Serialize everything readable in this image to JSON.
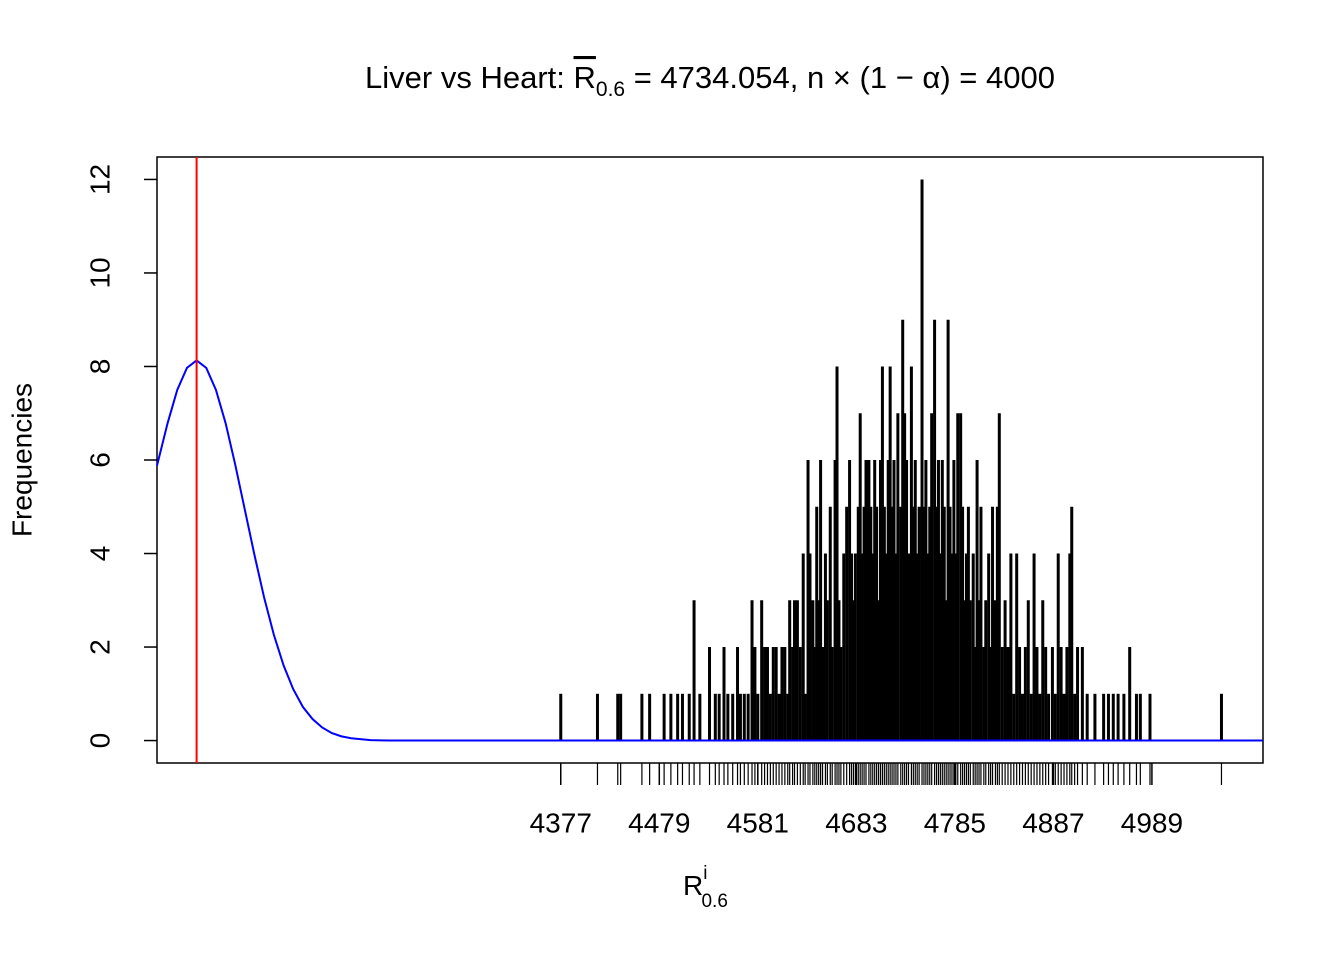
{
  "chart_data": {
    "type": "frequency",
    "title_parts": [
      "Liver vs Heart: ",
      "R",
      "0.6",
      " = 4734.054, n × (1 − α) = 4000"
    ],
    "x_label_parts": [
      "R",
      "i",
      "0.6"
    ],
    "y_label": "Frequencies",
    "xlim": [
      3959,
      5104
    ],
    "ylim": [
      -0.48,
      12.48
    ],
    "xticks": [
      4377,
      4479,
      4581,
      4683,
      4785,
      4887,
      4989
    ],
    "yticks": [
      0,
      2,
      4,
      6,
      8,
      10,
      12
    ],
    "vline": 4000,
    "vline_color": "#ff0000",
    "bars": {
      "color": "#000000",
      "x": [
        4377,
        4415,
        4436,
        4439,
        4461,
        4469,
        4484,
        4491,
        4498,
        4503,
        4510,
        4515,
        4521,
        4531,
        4537,
        4541,
        4546,
        4550,
        4555,
        4560,
        4563,
        4567,
        4571,
        4575,
        4578,
        4581,
        4585,
        4588,
        4591,
        4594,
        4597,
        4600,
        4603,
        4606,
        4609,
        4612,
        4614,
        4617,
        4619,
        4622,
        4625,
        4628,
        4630,
        4633,
        4635,
        4638,
        4640,
        4642,
        4644,
        4646,
        4648,
        4651,
        4653,
        4656,
        4658,
        4661,
        4663,
        4665,
        4667,
        4670,
        4673,
        4676,
        4678,
        4680,
        4682,
        4685,
        4687,
        4689,
        4691,
        4693,
        4696,
        4698,
        4700,
        4702,
        4704,
        4706,
        4708,
        4710,
        4712,
        4714,
        4716,
        4718,
        4720,
        4722,
        4724,
        4726,
        4729,
        4731,
        4733,
        4735,
        4737,
        4740,
        4742,
        4744,
        4746,
        4748,
        4751,
        4753,
        4755,
        4757,
        4759,
        4761,
        4764,
        4766,
        4768,
        4770,
        4772,
        4774,
        4776,
        4778,
        4780,
        4782,
        4784,
        4786,
        4788,
        4791,
        4793,
        4795,
        4797,
        4799,
        4801,
        4804,
        4806,
        4808,
        4810,
        4812,
        4815,
        4817,
        4820,
        4822,
        4824,
        4827,
        4829,
        4831,
        4834,
        4837,
        4840,
        4843,
        4846,
        4849,
        4852,
        4855,
        4858,
        4861,
        4864,
        4867,
        4870,
        4873,
        4876,
        4879,
        4882,
        4886,
        4889,
        4892,
        4895,
        4898,
        4901,
        4904,
        4906,
        4909,
        4912,
        4917,
        4922,
        4930,
        4939,
        4944,
        4949,
        4954,
        4960,
        4966,
        4973,
        4977,
        4987,
        5061
      ],
      "values": [
        1,
        1,
        1,
        1,
        1,
        1,
        1,
        1,
        1,
        1,
        1,
        3,
        1,
        2,
        1,
        1,
        2,
        1,
        1,
        2,
        1,
        1,
        1,
        3,
        2,
        1,
        3,
        2,
        2,
        1,
        2,
        2,
        1,
        2,
        2,
        1,
        3,
        2,
        3,
        3,
        2,
        4,
        1,
        6,
        4,
        3,
        2,
        5,
        3,
        6,
        2,
        4,
        3,
        5,
        2,
        6,
        8,
        3,
        2,
        4,
        5,
        6,
        4,
        3,
        4,
        5,
        7,
        4,
        5,
        6,
        6,
        5,
        4,
        6,
        5,
        3,
        6,
        8,
        5,
        4,
        6,
        8,
        5,
        6,
        4,
        7,
        5,
        9,
        7,
        6,
        4,
        8,
        5,
        6,
        4,
        5,
        12,
        5,
        6,
        4,
        5,
        7,
        9,
        5,
        6,
        4,
        6,
        5,
        3,
        9,
        5,
        4,
        6,
        4,
        7,
        7,
        5,
        3,
        4,
        5,
        3,
        4,
        2,
        6,
        3,
        5,
        2,
        3,
        4,
        2,
        5,
        3,
        5,
        7,
        2,
        3,
        2,
        4,
        1,
        4,
        2,
        1,
        2,
        3,
        1,
        4,
        2,
        1,
        3,
        2,
        1,
        2,
        1,
        4,
        2,
        1,
        2,
        4,
        5,
        1,
        2,
        2,
        1,
        1,
        1,
        1,
        1,
        1,
        1,
        2,
        1,
        1,
        1,
        1
      ]
    },
    "curve": {
      "color": "#0000ff",
      "x": [
        3959,
        3970,
        3980,
        3990,
        4000,
        4010,
        4020,
        4030,
        4040,
        4050,
        4060,
        4070,
        4080,
        4090,
        4100,
        4110,
        4120,
        4130,
        4140,
        4150,
        4160,
        4180,
        4200,
        5104
      ],
      "values": [
        5.88,
        6.79,
        7.5,
        7.97,
        8.13,
        7.97,
        7.5,
        6.79,
        5.9,
        4.93,
        3.96,
        3.05,
        2.26,
        1.61,
        1.1,
        0.72,
        0.46,
        0.28,
        0.16,
        0.09,
        0.05,
        0.01,
        0,
        0
      ]
    }
  }
}
